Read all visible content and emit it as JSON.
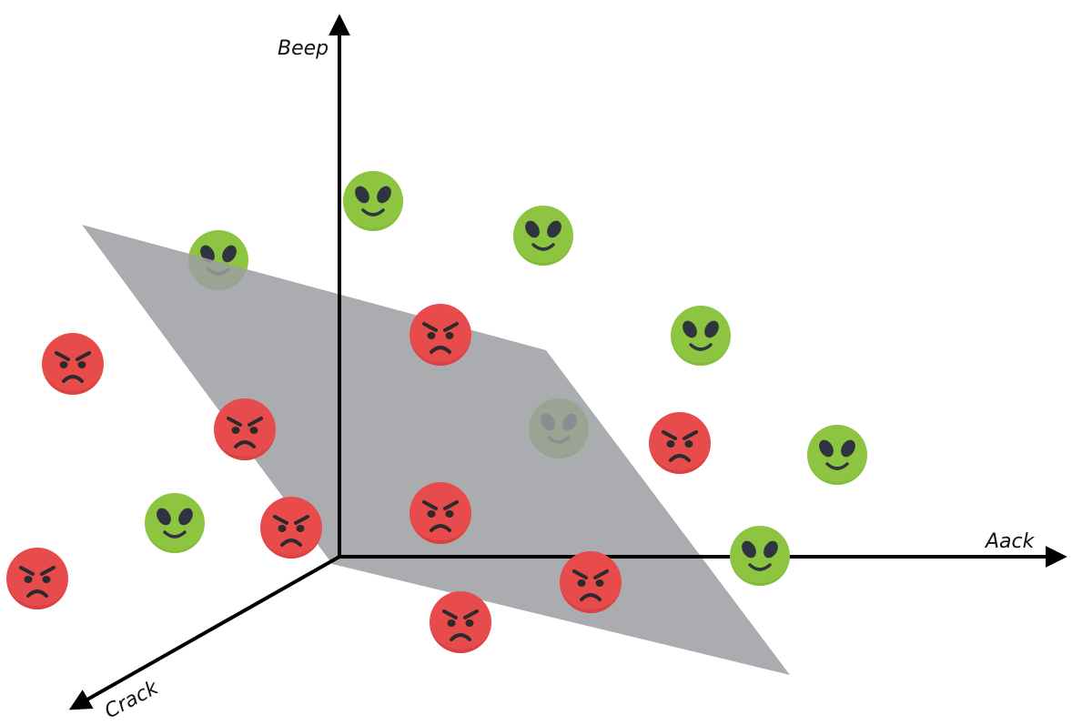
{
  "axes": {
    "vertical": {
      "label": "Beep"
    },
    "horizontal": {
      "label": "Aack"
    },
    "depth": {
      "label": "Crack"
    }
  },
  "colors": {
    "plane": "#9c9da2",
    "alien_face": "#8dc540",
    "alien_face_shade": "#76b22f",
    "alien_feature": "#2e3440",
    "angry_face": "#e84b4b",
    "angry_face_shade": "#d33a3a",
    "angry_feature": "#2b2b2b"
  },
  "icons": {
    "alien": "green-alien-face-icon",
    "angry": "red-angry-face-icon"
  }
}
